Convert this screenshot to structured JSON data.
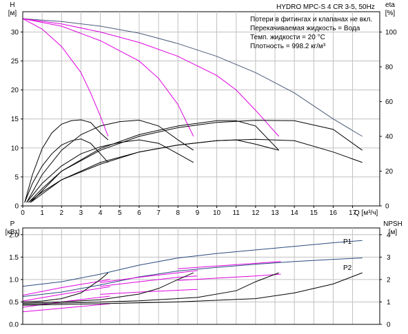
{
  "title": "HYDRO MPC-S 4 CR 3-5, 50Hz",
  "notes": [
    "Потери в фитингах и клапанах не вкл.",
    "Перекачиваемая жидкость = Вода",
    "Темп. жидкости = 20 °C",
    "Плотность = 998.2 кг/м³"
  ],
  "colors": {
    "head": "#4a5a78",
    "efficiency": "#000000",
    "npsh": "#000000",
    "system": "#e000e0",
    "power": "#2a4a80"
  },
  "chart_data": [
    {
      "type": "line",
      "name": "head-efficiency",
      "xlabel": "Q [м³/ч]",
      "ylabel": "H",
      "yunit": "[м]",
      "y2label": "eta",
      "y2unit": "[%]",
      "xlim": [
        0,
        18.4
      ],
      "ylim": [
        0,
        33.5
      ],
      "y2lim": [
        0,
        111.7
      ],
      "x_ticks": [
        0,
        1,
        2,
        3,
        4,
        5,
        6,
        7,
        8,
        9,
        10,
        11,
        12,
        13,
        14,
        15,
        16,
        17
      ],
      "y_ticks": [
        0,
        5,
        10,
        15,
        20,
        25,
        30
      ],
      "y2_ticks": [
        0,
        20,
        40,
        60,
        80,
        100
      ],
      "head_series": [
        {
          "x": [
            0,
            2,
            4,
            6,
            8,
            10,
            12,
            14,
            16,
            17.5
          ],
          "y": [
            32.3,
            31.8,
            31.0,
            29.8,
            28.0,
            25.8,
            23.0,
            19.5,
            15.0,
            12.0
          ]
        }
      ],
      "system_series": [
        {
          "x": [
            0,
            1,
            2,
            3,
            3.5,
            4,
            4.4
          ],
          "y": [
            32.3,
            30.5,
            27.5,
            23.0,
            19.5,
            15.5,
            12.0
          ]
        },
        {
          "x": [
            0,
            2,
            4,
            6,
            7,
            8,
            8.8
          ],
          "y": [
            32.3,
            31.0,
            28.5,
            25.0,
            22.0,
            17.5,
            12.0
          ]
        },
        {
          "x": [
            0,
            2,
            4,
            6,
            8,
            10,
            11,
            12,
            13.2
          ],
          "y": [
            32.3,
            31.4,
            30.0,
            28.2,
            25.8,
            22.5,
            20.0,
            16.5,
            12.0
          ]
        }
      ],
      "efficiency_series": [
        {
          "x": [
            0.1,
            0.5,
            1,
            1.5,
            2,
            2.5,
            3,
            3.5,
            4,
            4.4
          ],
          "y": [
            2,
            18,
            33,
            42,
            47,
            49,
            49.5,
            48,
            42,
            38
          ]
        },
        {
          "x": [
            0.1,
            0.5,
            1,
            1.5,
            2,
            2.5,
            3,
            3.5,
            4,
            4.4
          ],
          "y": [
            2,
            13,
            23,
            30,
            35,
            37.5,
            38.5,
            36,
            30,
            25
          ]
        },
        {
          "x": [
            0.2,
            1,
            2,
            3,
            4,
            5,
            6,
            7,
            8,
            8.8
          ],
          "y": [
            2,
            18,
            32,
            41,
            46,
            48.5,
            49.3,
            46,
            38,
            32
          ]
        },
        {
          "x": [
            0.2,
            1,
            2,
            3,
            4,
            5,
            6,
            7,
            8,
            8.8
          ],
          "y": [
            2,
            13,
            23,
            30,
            34,
            36.5,
            38,
            36,
            30,
            25
          ]
        },
        {
          "x": [
            0.3,
            1,
            2,
            4,
            6,
            8,
            10,
            11,
            12,
            13.2
          ],
          "y": [
            2,
            10,
            20,
            33,
            41,
            46,
            49,
            49,
            46,
            32
          ]
        },
        {
          "x": [
            0.3,
            1,
            2,
            4,
            6,
            8,
            10,
            11,
            12,
            13.2
          ],
          "y": [
            2,
            8,
            15,
            25,
            31,
            35,
            37.5,
            38,
            35.5,
            32
          ]
        },
        {
          "x": [
            0.4,
            2,
            4,
            6,
            8,
            10,
            12,
            14,
            16,
            17.5
          ],
          "y": [
            2,
            20,
            32,
            40,
            45,
            48,
            49.2,
            49,
            44,
            32
          ]
        },
        {
          "x": [
            0.4,
            2,
            4,
            6,
            8,
            10,
            12,
            14,
            16,
            17.5
          ],
          "y": [
            2,
            15,
            24,
            31,
            35,
            37.5,
            38.3,
            37.5,
            31,
            25
          ]
        }
      ]
    },
    {
      "type": "line",
      "name": "power-npsh",
      "ylabel": "P",
      "yunit": "[кВт]",
      "y2label": "NPSH",
      "y2unit": "[м]",
      "xlim": [
        0,
        18.4
      ],
      "ylim": [
        0,
        2.15
      ],
      "y2lim": [
        0,
        4.3
      ],
      "y_ticks": [
        0.0,
        0.5,
        1.0,
        1.5,
        2.0
      ],
      "y_tick_labels": [
        "0.0",
        "0.5",
        "1.0",
        "1.5",
        "2.0"
      ],
      "y2_ticks": [
        0,
        1,
        2,
        3,
        4
      ],
      "power_series": [
        {
          "name": "P1",
          "x": [
            0,
            2,
            4,
            6,
            8,
            10,
            12,
            14,
            16,
            17.5
          ],
          "y": [
            0.85,
            0.95,
            1.12,
            1.32,
            1.48,
            1.58,
            1.66,
            1.74,
            1.82,
            1.87
          ]
        },
        {
          "name": "P2",
          "x": [
            0,
            2,
            4,
            6,
            8,
            10,
            12,
            14,
            16,
            17.5
          ],
          "y": [
            0.62,
            0.72,
            0.88,
            1.06,
            1.19,
            1.27,
            1.34,
            1.4,
            1.45,
            1.48
          ]
        }
      ],
      "system_power_series": [
        {
          "x": [
            0,
            2,
            4.5
          ],
          "y": [
            0.65,
            0.82,
            1.0
          ]
        },
        {
          "x": [
            0,
            2,
            4.5
          ],
          "y": [
            0.52,
            0.67,
            0.84
          ]
        },
        {
          "x": [
            0,
            2,
            4.5
          ],
          "y": [
            0.38,
            0.5,
            0.63
          ]
        },
        {
          "x": [
            0,
            2,
            4.5
          ],
          "y": [
            0.28,
            0.36,
            0.46
          ]
        },
        {
          "x": [
            4,
            6,
            8,
            9
          ],
          "y": [
            0.93,
            1.05,
            1.15,
            1.2
          ]
        },
        {
          "x": [
            4,
            6,
            8,
            9
          ],
          "y": [
            0.85,
            0.95,
            1.05,
            1.08
          ]
        },
        {
          "x": [
            4,
            6,
            8,
            9
          ],
          "y": [
            0.67,
            0.72,
            0.76,
            0.78
          ]
        },
        {
          "x": [
            8,
            10,
            12,
            13.3
          ],
          "y": [
            1.24,
            1.3,
            1.36,
            1.4
          ]
        },
        {
          "x": [
            8,
            10,
            12,
            13.3
          ],
          "y": [
            0.98,
            1.03,
            1.08,
            1.12
          ]
        }
      ],
      "npsh_series": [
        {
          "x": [
            0,
            1,
            2,
            3,
            3.5,
            4,
            4.4
          ],
          "y": [
            1.0,
            1.04,
            1.15,
            1.4,
            1.7,
            2.0,
            2.3
          ]
        },
        {
          "x": [
            0,
            2,
            4,
            6,
            7,
            8,
            8.8
          ],
          "y": [
            0.95,
            1.0,
            1.1,
            1.35,
            1.6,
            2.0,
            2.3
          ]
        },
        {
          "x": [
            0,
            3,
            6,
            9,
            11,
            12,
            13.2
          ],
          "y": [
            0.9,
            0.97,
            1.05,
            1.2,
            1.5,
            1.9,
            2.3
          ]
        },
        {
          "x": [
            0,
            4,
            8,
            12,
            14,
            16,
            17.5
          ],
          "y": [
            0.85,
            0.92,
            1.0,
            1.15,
            1.4,
            1.8,
            2.3
          ]
        }
      ]
    }
  ]
}
